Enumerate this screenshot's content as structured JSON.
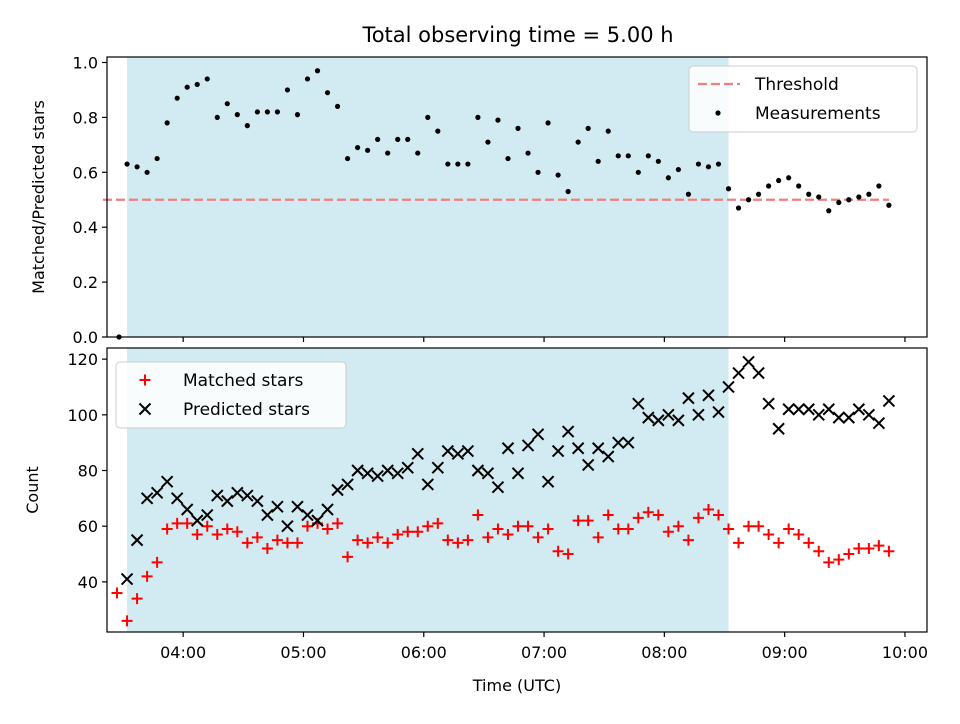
{
  "figure": {
    "title": "Total observing time = 5.00 h"
  },
  "chart_data": [
    {
      "type": "scatter",
      "panel": "top",
      "ylabel": "Matched/Predicted stars",
      "xlabel": "",
      "xlim": [
        "03:22",
        "10:11"
      ],
      "ylim": [
        0,
        1.02
      ],
      "yticks": [
        "0.0",
        "0.2",
        "0.4",
        "0.6",
        "0.8",
        "1.0"
      ],
      "xticks": [
        "04:00",
        "05:00",
        "06:00",
        "07:00",
        "08:00",
        "09:00",
        "10:00"
      ],
      "shaded_span": [
        "03:32",
        "08:32"
      ],
      "shade_color": "#add8e6",
      "threshold": {
        "name": "Threshold",
        "value": 0.5,
        "range": [
          "03:20",
          "09:52"
        ],
        "color": "#f08080"
      },
      "legend_position": "upper right",
      "series": [
        {
          "name": "Measurements",
          "marker": "dot",
          "color": "#000000",
          "points": [
            [
              "03:28",
              0.0
            ],
            [
              "03:32",
              0.63
            ],
            [
              "03:37",
              0.62
            ],
            [
              "03:42",
              0.6
            ],
            [
              "03:47",
              0.65
            ],
            [
              "03:52",
              0.78
            ],
            [
              "03:57",
              0.87
            ],
            [
              "04:02",
              0.91
            ],
            [
              "04:07",
              0.92
            ],
            [
              "04:12",
              0.94
            ],
            [
              "04:17",
              0.8
            ],
            [
              "04:22",
              0.85
            ],
            [
              "04:27",
              0.81
            ],
            [
              "04:32",
              0.77
            ],
            [
              "04:37",
              0.82
            ],
            [
              "04:42",
              0.82
            ],
            [
              "04:47",
              0.82
            ],
            [
              "04:52",
              0.9
            ],
            [
              "04:57",
              0.81
            ],
            [
              "05:02",
              0.94
            ],
            [
              "05:07",
              0.97
            ],
            [
              "05:12",
              0.89
            ],
            [
              "05:17",
              0.84
            ],
            [
              "05:22",
              0.65
            ],
            [
              "05:27",
              0.69
            ],
            [
              "05:32",
              0.68
            ],
            [
              "05:37",
              0.72
            ],
            [
              "05:42",
              0.67
            ],
            [
              "05:47",
              0.72
            ],
            [
              "05:52",
              0.72
            ],
            [
              "05:57",
              0.67
            ],
            [
              "06:02",
              0.8
            ],
            [
              "06:07",
              0.75
            ],
            [
              "06:12",
              0.63
            ],
            [
              "06:17",
              0.63
            ],
            [
              "06:22",
              0.63
            ],
            [
              "06:27",
              0.8
            ],
            [
              "06:32",
              0.71
            ],
            [
              "06:37",
              0.79
            ],
            [
              "06:42",
              0.65
            ],
            [
              "06:47",
              0.76
            ],
            [
              "06:52",
              0.67
            ],
            [
              "06:57",
              0.6
            ],
            [
              "07:02",
              0.78
            ],
            [
              "07:07",
              0.59
            ],
            [
              "07:12",
              0.53
            ],
            [
              "07:17",
              0.71
            ],
            [
              "07:22",
              0.76
            ],
            [
              "07:27",
              0.64
            ],
            [
              "07:32",
              0.75
            ],
            [
              "07:37",
              0.66
            ],
            [
              "07:42",
              0.66
            ],
            [
              "07:47",
              0.6
            ],
            [
              "07:52",
              0.66
            ],
            [
              "07:57",
              0.64
            ],
            [
              "08:02",
              0.58
            ],
            [
              "08:07",
              0.61
            ],
            [
              "08:12",
              0.52
            ],
            [
              "08:17",
              0.63
            ],
            [
              "08:22",
              0.62
            ],
            [
              "08:27",
              0.63
            ],
            [
              "08:32",
              0.54
            ],
            [
              "08:37",
              0.47
            ],
            [
              "08:42",
              0.5
            ],
            [
              "08:47",
              0.52
            ],
            [
              "08:52",
              0.55
            ],
            [
              "08:57",
              0.57
            ],
            [
              "09:02",
              0.58
            ],
            [
              "09:07",
              0.55
            ],
            [
              "09:12",
              0.52
            ],
            [
              "09:17",
              0.51
            ],
            [
              "09:22",
              0.46
            ],
            [
              "09:27",
              0.49
            ],
            [
              "09:32",
              0.5
            ],
            [
              "09:37",
              0.51
            ],
            [
              "09:42",
              0.52
            ],
            [
              "09:47",
              0.55
            ],
            [
              "09:52",
              0.48
            ]
          ]
        }
      ]
    },
    {
      "type": "scatter",
      "panel": "bottom",
      "ylabel": "Count",
      "xlabel": "Time (UTC)",
      "xlim": [
        "03:22",
        "10:11"
      ],
      "ylim": [
        22,
        124
      ],
      "yticks": [
        "40",
        "60",
        "80",
        "100",
        "120"
      ],
      "xticks": [
        "04:00",
        "05:00",
        "06:00",
        "07:00",
        "08:00",
        "09:00",
        "10:00"
      ],
      "shaded_span": [
        "03:32",
        "08:32"
      ],
      "shade_color": "#add8e6",
      "legend_position": "upper left",
      "series": [
        {
          "name": "Matched stars",
          "marker": "plus",
          "color": "#ff0000",
          "points": [
            [
              "03:27",
              36
            ],
            [
              "03:32",
              26
            ],
            [
              "03:37",
              34
            ],
            [
              "03:42",
              42
            ],
            [
              "03:47",
              47
            ],
            [
              "03:52",
              59
            ],
            [
              "03:57",
              61
            ],
            [
              "04:02",
              61
            ],
            [
              "04:07",
              57
            ],
            [
              "04:12",
              60
            ],
            [
              "04:17",
              57
            ],
            [
              "04:22",
              59
            ],
            [
              "04:27",
              58
            ],
            [
              "04:32",
              54
            ],
            [
              "04:37",
              56
            ],
            [
              "04:42",
              52
            ],
            [
              "04:47",
              55
            ],
            [
              "04:52",
              54
            ],
            [
              "04:57",
              54
            ],
            [
              "05:02",
              60
            ],
            [
              "05:07",
              61
            ],
            [
              "05:12",
              59
            ],
            [
              "05:17",
              61
            ],
            [
              "05:22",
              49
            ],
            [
              "05:27",
              55
            ],
            [
              "05:32",
              54
            ],
            [
              "05:37",
              56
            ],
            [
              "05:42",
              54
            ],
            [
              "05:47",
              57
            ],
            [
              "05:52",
              58
            ],
            [
              "05:57",
              58
            ],
            [
              "06:02",
              60
            ],
            [
              "06:07",
              61
            ],
            [
              "06:12",
              55
            ],
            [
              "06:17",
              54
            ],
            [
              "06:22",
              55
            ],
            [
              "06:27",
              64
            ],
            [
              "06:32",
              56
            ],
            [
              "06:37",
              59
            ],
            [
              "06:42",
              57
            ],
            [
              "06:47",
              60
            ],
            [
              "06:52",
              60
            ],
            [
              "06:57",
              56
            ],
            [
              "07:02",
              59
            ],
            [
              "07:07",
              51
            ],
            [
              "07:12",
              50
            ],
            [
              "07:17",
              62
            ],
            [
              "07:22",
              62
            ],
            [
              "07:27",
              56
            ],
            [
              "07:32",
              64
            ],
            [
              "07:37",
              59
            ],
            [
              "07:42",
              59
            ],
            [
              "07:47",
              63
            ],
            [
              "07:52",
              65
            ],
            [
              "07:57",
              64
            ],
            [
              "08:02",
              58
            ],
            [
              "08:07",
              60
            ],
            [
              "08:12",
              55
            ],
            [
              "08:17",
              63
            ],
            [
              "08:22",
              66
            ],
            [
              "08:27",
              64
            ],
            [
              "08:32",
              59
            ],
            [
              "08:37",
              54
            ],
            [
              "08:42",
              60
            ],
            [
              "08:47",
              60
            ],
            [
              "08:52",
              57
            ],
            [
              "08:57",
              54
            ],
            [
              "09:02",
              59
            ],
            [
              "09:07",
              57
            ],
            [
              "09:12",
              54
            ],
            [
              "09:17",
              51
            ],
            [
              "09:22",
              47
            ],
            [
              "09:27",
              48
            ],
            [
              "09:32",
              50
            ],
            [
              "09:37",
              52
            ],
            [
              "09:42",
              52
            ],
            [
              "09:47",
              53
            ],
            [
              "09:52",
              51
            ]
          ]
        },
        {
          "name": "Predicted stars",
          "marker": "x",
          "color": "#000000",
          "points": [
            [
              "03:32",
              41
            ],
            [
              "03:37",
              55
            ],
            [
              "03:42",
              70
            ],
            [
              "03:47",
              72
            ],
            [
              "03:52",
              76
            ],
            [
              "03:57",
              70
            ],
            [
              "04:02",
              66
            ],
            [
              "04:07",
              62
            ],
            [
              "04:12",
              64
            ],
            [
              "04:17",
              71
            ],
            [
              "04:22",
              69
            ],
            [
              "04:27",
              72
            ],
            [
              "04:32",
              71
            ],
            [
              "04:37",
              69
            ],
            [
              "04:42",
              64
            ],
            [
              "04:47",
              67
            ],
            [
              "04:52",
              60
            ],
            [
              "04:57",
              67
            ],
            [
              "05:02",
              64
            ],
            [
              "05:07",
              62
            ],
            [
              "05:12",
              66
            ],
            [
              "05:17",
              73
            ],
            [
              "05:22",
              75
            ],
            [
              "05:27",
              80
            ],
            [
              "05:32",
              79
            ],
            [
              "05:37",
              78
            ],
            [
              "05:42",
              80
            ],
            [
              "05:47",
              79
            ],
            [
              "05:52",
              81
            ],
            [
              "05:57",
              86
            ],
            [
              "06:02",
              75
            ],
            [
              "06:07",
              81
            ],
            [
              "06:12",
              87
            ],
            [
              "06:17",
              86
            ],
            [
              "06:22",
              87
            ],
            [
              "06:27",
              80
            ],
            [
              "06:32",
              79
            ],
            [
              "06:37",
              74
            ],
            [
              "06:42",
              88
            ],
            [
              "06:47",
              79
            ],
            [
              "06:52",
              89
            ],
            [
              "06:57",
              93
            ],
            [
              "07:02",
              76
            ],
            [
              "07:07",
              87
            ],
            [
              "07:12",
              94
            ],
            [
              "07:17",
              88
            ],
            [
              "07:22",
              82
            ],
            [
              "07:27",
              88
            ],
            [
              "07:32",
              85
            ],
            [
              "07:37",
              90
            ],
            [
              "07:42",
              90
            ],
            [
              "07:47",
              104
            ],
            [
              "07:52",
              99
            ],
            [
              "07:57",
              98
            ],
            [
              "08:02",
              100
            ],
            [
              "08:07",
              98
            ],
            [
              "08:12",
              106
            ],
            [
              "08:17",
              100
            ],
            [
              "08:22",
              107
            ],
            [
              "08:27",
              101
            ],
            [
              "08:32",
              110
            ],
            [
              "08:37",
              115
            ],
            [
              "08:42",
              119
            ],
            [
              "08:47",
              115
            ],
            [
              "08:52",
              104
            ],
            [
              "08:57",
              95
            ],
            [
              "09:02",
              102
            ],
            [
              "09:07",
              102
            ],
            [
              "09:12",
              102
            ],
            [
              "09:17",
              100
            ],
            [
              "09:22",
              102
            ],
            [
              "09:27",
              99
            ],
            [
              "09:32",
              99
            ],
            [
              "09:37",
              102
            ],
            [
              "09:42",
              100
            ],
            [
              "09:47",
              97
            ],
            [
              "09:52",
              105
            ]
          ]
        }
      ]
    }
  ]
}
